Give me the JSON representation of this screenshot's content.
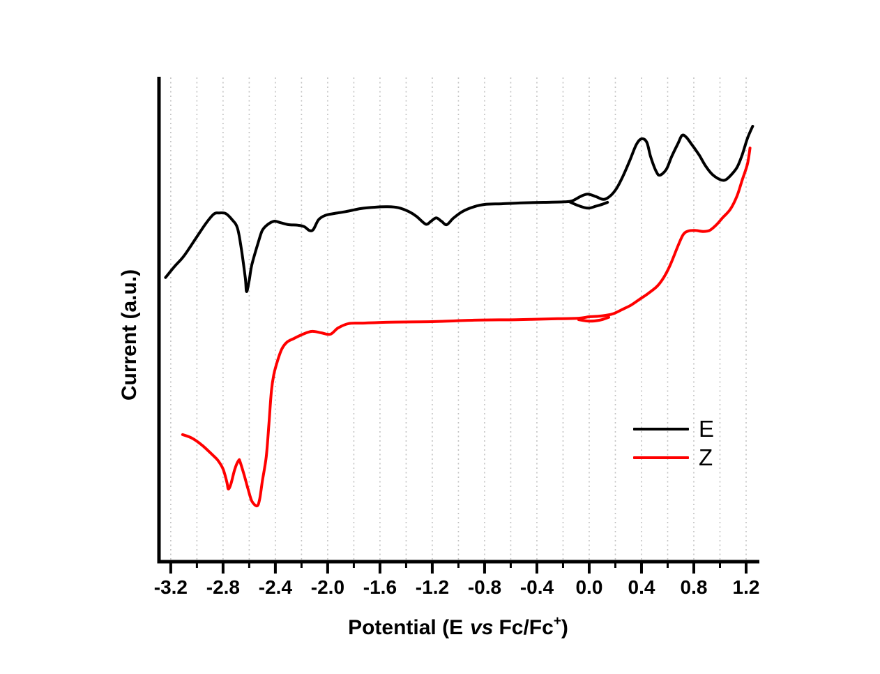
{
  "figure": {
    "background": "#ffffff"
  },
  "legend": {
    "position": "right-middle",
    "items": [
      {
        "label": "E",
        "color": "#000000"
      },
      {
        "label": "Z",
        "color": "#ff0000"
      }
    ]
  },
  "chart_data": {
    "type": "line",
    "title": "",
    "xlabel": "Potential (E vs Fc/Fc+)",
    "xlabel_parts": {
      "pre": "Potential (E",
      "vs": "vs",
      "mid": "Fc/Fc",
      "sup": "+",
      "post": ")"
    },
    "ylabel": "Current (a.u.)",
    "xlim": [
      -3.29,
      1.28
    ],
    "ylim": [
      0,
      100
    ],
    "y_units": "arbitrary (no y ticks shown)",
    "grid": "vertical-dotted",
    "grid_color": "#c2c2c2",
    "axis_color": "#000000",
    "legend_position": "inside right-middle",
    "x_tick_labels": [
      "-3.2",
      "-2.8",
      "-2.4",
      "-2.0",
      "-1.6",
      "-1.2",
      "-0.8",
      "-0.4",
      "0.0",
      "0.4",
      "0.8",
      "1.2"
    ],
    "x_tick_values": [
      -3.2,
      -2.8,
      -2.4,
      -2.0,
      -1.6,
      -1.2,
      -0.8,
      -0.4,
      0.0,
      0.4,
      0.8,
      1.2
    ],
    "x_minor_tick_values": [
      -3.0,
      -2.6,
      -2.2,
      -1.8,
      -1.4,
      -1.0,
      -0.6,
      -0.2,
      0.2,
      0.6,
      1.0
    ],
    "x_grid_values": [
      -3.2,
      -3.0,
      -2.8,
      -2.6,
      -2.4,
      -2.2,
      -2.0,
      -1.8,
      -1.6,
      -1.4,
      -1.2,
      -1.0,
      -0.8,
      -0.6,
      -0.4,
      -0.2,
      0.0,
      0.2,
      0.4,
      0.6,
      0.8,
      1.0,
      1.2
    ],
    "series": [
      {
        "name": "E",
        "color": "#000000",
        "points": [
          [
            -3.24,
            58.6
          ],
          [
            -3.17,
            60.9
          ],
          [
            -3.1,
            63.0
          ],
          [
            -3.01,
            66.6
          ],
          [
            -2.93,
            69.8
          ],
          [
            -2.87,
            71.7
          ],
          [
            -2.83,
            71.9
          ],
          [
            -2.78,
            71.8
          ],
          [
            -2.73,
            70.5
          ],
          [
            -2.69,
            68.8
          ],
          [
            -2.66,
            64.5
          ],
          [
            -2.63,
            58.5
          ],
          [
            -2.62,
            55.7
          ],
          [
            -2.6,
            58.0
          ],
          [
            -2.58,
            61.2
          ],
          [
            -2.53,
            65.9
          ],
          [
            -2.5,
            68.3
          ],
          [
            -2.46,
            69.5
          ],
          [
            -2.41,
            70.2
          ],
          [
            -2.36,
            69.9
          ],
          [
            -2.3,
            69.5
          ],
          [
            -2.23,
            69.4
          ],
          [
            -2.18,
            69.1
          ],
          [
            -2.14,
            68.3
          ],
          [
            -2.11,
            68.5
          ],
          [
            -2.07,
            70.5
          ],
          [
            -2.02,
            71.4
          ],
          [
            -1.95,
            71.8
          ],
          [
            -1.86,
            72.2
          ],
          [
            -1.75,
            72.8
          ],
          [
            -1.64,
            73.1
          ],
          [
            -1.54,
            73.2
          ],
          [
            -1.46,
            73.0
          ],
          [
            -1.38,
            72.2
          ],
          [
            -1.32,
            71.2
          ],
          [
            -1.25,
            69.6
          ],
          [
            -1.21,
            70.2
          ],
          [
            -1.17,
            70.9
          ],
          [
            -1.13,
            70.2
          ],
          [
            -1.09,
            69.5
          ],
          [
            -1.04,
            70.8
          ],
          [
            -0.97,
            72.2
          ],
          [
            -0.88,
            73.2
          ],
          [
            -0.79,
            73.7
          ],
          [
            -0.67,
            73.8
          ],
          [
            -0.51,
            74.0
          ],
          [
            -0.35,
            74.1
          ],
          [
            -0.19,
            74.2
          ],
          [
            -0.13,
            74.4
          ],
          [
            -0.06,
            75.4
          ],
          [
            -0.01,
            75.8
          ],
          [
            0.05,
            75.3
          ],
          [
            0.11,
            74.7
          ],
          [
            0.16,
            75.4
          ],
          [
            0.21,
            77.0
          ],
          [
            0.26,
            79.6
          ],
          [
            0.31,
            82.7
          ],
          [
            0.36,
            86.0
          ],
          [
            0.4,
            87.2
          ],
          [
            0.44,
            86.5
          ],
          [
            0.47,
            83.5
          ],
          [
            0.51,
            80.6
          ],
          [
            0.54,
            79.7
          ],
          [
            0.59,
            80.9
          ],
          [
            0.63,
            83.5
          ],
          [
            0.68,
            86.3
          ],
          [
            0.71,
            87.9
          ],
          [
            0.74,
            87.6
          ],
          [
            0.78,
            86.2
          ],
          [
            0.84,
            83.9
          ],
          [
            0.89,
            81.6
          ],
          [
            0.94,
            79.9
          ],
          [
            1.0,
            78.8
          ],
          [
            1.04,
            78.7
          ],
          [
            1.08,
            79.6
          ],
          [
            1.13,
            81.3
          ],
          [
            1.17,
            83.9
          ],
          [
            1.21,
            87.3
          ],
          [
            1.25,
            89.8
          ]
        ],
        "return_branch": [
          [
            -0.15,
            74.2
          ],
          [
            -0.08,
            73.4
          ],
          [
            -0.01,
            72.9
          ],
          [
            0.05,
            73.3
          ],
          [
            0.1,
            73.7
          ],
          [
            0.14,
            74.1
          ]
        ]
      },
      {
        "name": "Z",
        "color": "#ff0000",
        "points": [
          [
            -3.11,
            26.2
          ],
          [
            -3.04,
            25.5
          ],
          [
            -2.96,
            24.0
          ],
          [
            -2.88,
            22.0
          ],
          [
            -2.84,
            20.9
          ],
          [
            -2.8,
            19.1
          ],
          [
            -2.77,
            16.3
          ],
          [
            -2.76,
            15.0
          ],
          [
            -2.74,
            16.0
          ],
          [
            -2.71,
            19.1
          ],
          [
            -2.68,
            20.9
          ],
          [
            -2.67,
            20.6
          ],
          [
            -2.64,
            18.0
          ],
          [
            -2.61,
            15.1
          ],
          [
            -2.58,
            12.5
          ],
          [
            -2.54,
            11.5
          ],
          [
            -2.52,
            12.9
          ],
          [
            -2.5,
            16.5
          ],
          [
            -2.47,
            21.6
          ],
          [
            -2.45,
            28.1
          ],
          [
            -2.43,
            35.3
          ],
          [
            -2.41,
            38.8
          ],
          [
            -2.38,
            41.7
          ],
          [
            -2.35,
            43.9
          ],
          [
            -2.31,
            45.3
          ],
          [
            -2.26,
            46.0
          ],
          [
            -2.19,
            46.9
          ],
          [
            -2.12,
            47.5
          ],
          [
            -2.05,
            47.2
          ],
          [
            -1.98,
            46.9
          ],
          [
            -1.92,
            48.2
          ],
          [
            -1.84,
            49.1
          ],
          [
            -1.73,
            49.2
          ],
          [
            -1.52,
            49.4
          ],
          [
            -1.2,
            49.5
          ],
          [
            -0.88,
            49.8
          ],
          [
            -0.56,
            49.9
          ],
          [
            -0.24,
            50.1
          ],
          [
            -0.08,
            50.2
          ],
          [
            0.0,
            50.5
          ],
          [
            0.07,
            50.6
          ],
          [
            0.13,
            50.8
          ],
          [
            0.19,
            51.2
          ],
          [
            0.26,
            52.1
          ],
          [
            0.32,
            52.9
          ],
          [
            0.38,
            54.0
          ],
          [
            0.45,
            55.3
          ],
          [
            0.52,
            56.8
          ],
          [
            0.57,
            58.6
          ],
          [
            0.62,
            61.2
          ],
          [
            0.68,
            65.2
          ],
          [
            0.72,
            67.5
          ],
          [
            0.76,
            68.2
          ],
          [
            0.81,
            68.3
          ],
          [
            0.87,
            68.1
          ],
          [
            0.92,
            68.3
          ],
          [
            0.97,
            69.4
          ],
          [
            1.02,
            70.9
          ],
          [
            1.08,
            72.7
          ],
          [
            1.13,
            75.4
          ],
          [
            1.17,
            78.7
          ],
          [
            1.21,
            82.0
          ],
          [
            1.23,
            85.3
          ]
        ],
        "return_branch": [
          [
            -0.08,
            49.9
          ],
          [
            0.0,
            49.6
          ],
          [
            0.08,
            49.8
          ],
          [
            0.15,
            50.4
          ]
        ]
      }
    ]
  }
}
